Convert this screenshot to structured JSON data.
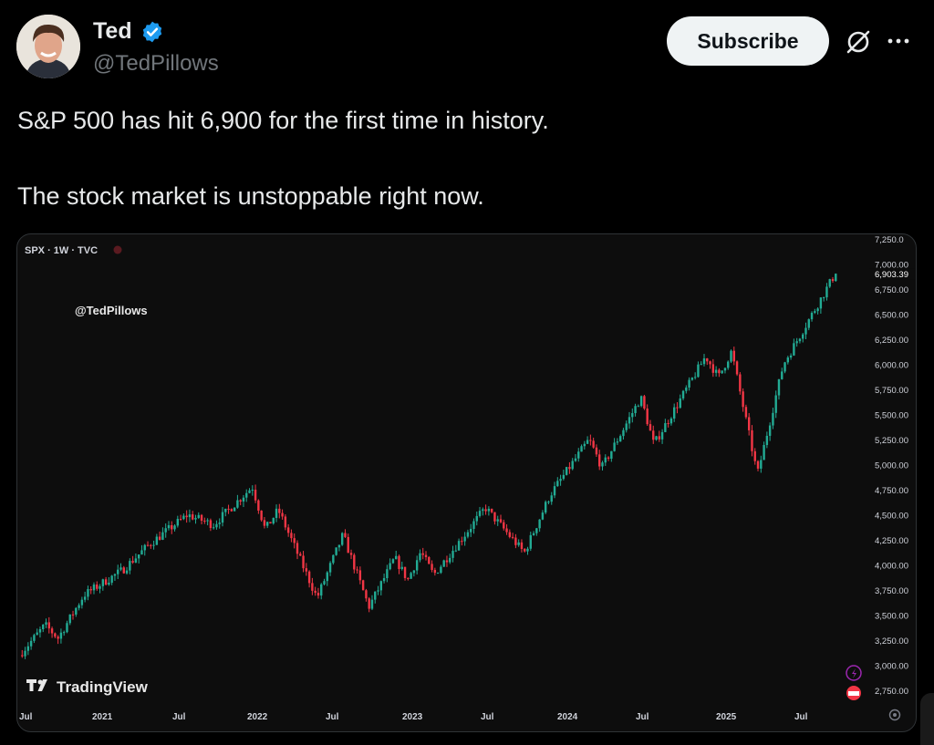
{
  "tweet": {
    "author_name": "Ted",
    "handle": "@TedPillows",
    "subscribe_label": "Subscribe",
    "text_line1": "S&P 500 has hit 6,900 for the first time in history.",
    "text_line2": "The stock market is unstoppable right now.",
    "verified_color": "#1d9bf0"
  },
  "chart_data": {
    "type": "candlestick",
    "symbol_label": "SPX · 1W · TVC",
    "watermark": "@TedPillows",
    "brand": "TradingView",
    "x_labels": [
      "Jul",
      "2021",
      "Jul",
      "2022",
      "Jul",
      "2023",
      "Jul",
      "2024",
      "Jul",
      "2025",
      "Jul"
    ],
    "y_ticks": [
      7250,
      7000,
      6750,
      6500,
      6250,
      6000,
      5750,
      5500,
      5250,
      5000,
      4750,
      4500,
      4250,
      4000,
      3750,
      3500,
      3250,
      3000,
      2750
    ],
    "y_tick_labels": [
      "7,250.0",
      "7,000.00",
      "6,750.00",
      "6,500.00",
      "6,250.00",
      "6,000.00",
      "5,750.00",
      "5,500.00",
      "5,250.00",
      "5,000.00",
      "4,750.00",
      "4,500.00",
      "4,250.00",
      "4,000.00",
      "3,750.00",
      "3,500.00",
      "3,250.00",
      "3,000.00",
      "2,750.00"
    ],
    "last_price_label": "6,903.39",
    "last_price": 6903.39,
    "anchors": [
      {
        "date": "2020-07",
        "close": 3100
      },
      {
        "date": "2020-09",
        "close": 3400
      },
      {
        "date": "2020-10",
        "close": 3270
      },
      {
        "date": "2020-12",
        "close": 3700
      },
      {
        "date": "2021-03",
        "close": 3950
      },
      {
        "date": "2021-05",
        "close": 4200
      },
      {
        "date": "2021-08",
        "close": 4500
      },
      {
        "date": "2021-10",
        "close": 4400
      },
      {
        "date": "2022-01",
        "close": 4780
      },
      {
        "date": "2022-02",
        "close": 4350
      },
      {
        "date": "2022-03",
        "close": 4550
      },
      {
        "date": "2022-06",
        "close": 3670
      },
      {
        "date": "2022-08",
        "close": 4300
      },
      {
        "date": "2022-10",
        "close": 3580
      },
      {
        "date": "2022-12",
        "close": 4070
      },
      {
        "date": "2023-01",
        "close": 3850
      },
      {
        "date": "2023-02",
        "close": 4130
      },
      {
        "date": "2023-03",
        "close": 3900
      },
      {
        "date": "2023-07",
        "close": 4570
      },
      {
        "date": "2023-10",
        "close": 4120
      },
      {
        "date": "2023-12",
        "close": 4700
      },
      {
        "date": "2024-03",
        "close": 5250
      },
      {
        "date": "2024-04",
        "close": 4970
      },
      {
        "date": "2024-07",
        "close": 5670
      },
      {
        "date": "2024-08",
        "close": 5200
      },
      {
        "date": "2024-12",
        "close": 6080
      },
      {
        "date": "2025-01",
        "close": 5870
      },
      {
        "date": "2025-02",
        "close": 6130
      },
      {
        "date": "2025-04",
        "close": 4900
      },
      {
        "date": "2025-06",
        "close": 6000
      },
      {
        "date": "2025-08",
        "close": 6450
      },
      {
        "date": "2025-10",
        "close": 6903
      }
    ],
    "up_color": "#22ab94",
    "down_color": "#f23645",
    "grid": false
  }
}
